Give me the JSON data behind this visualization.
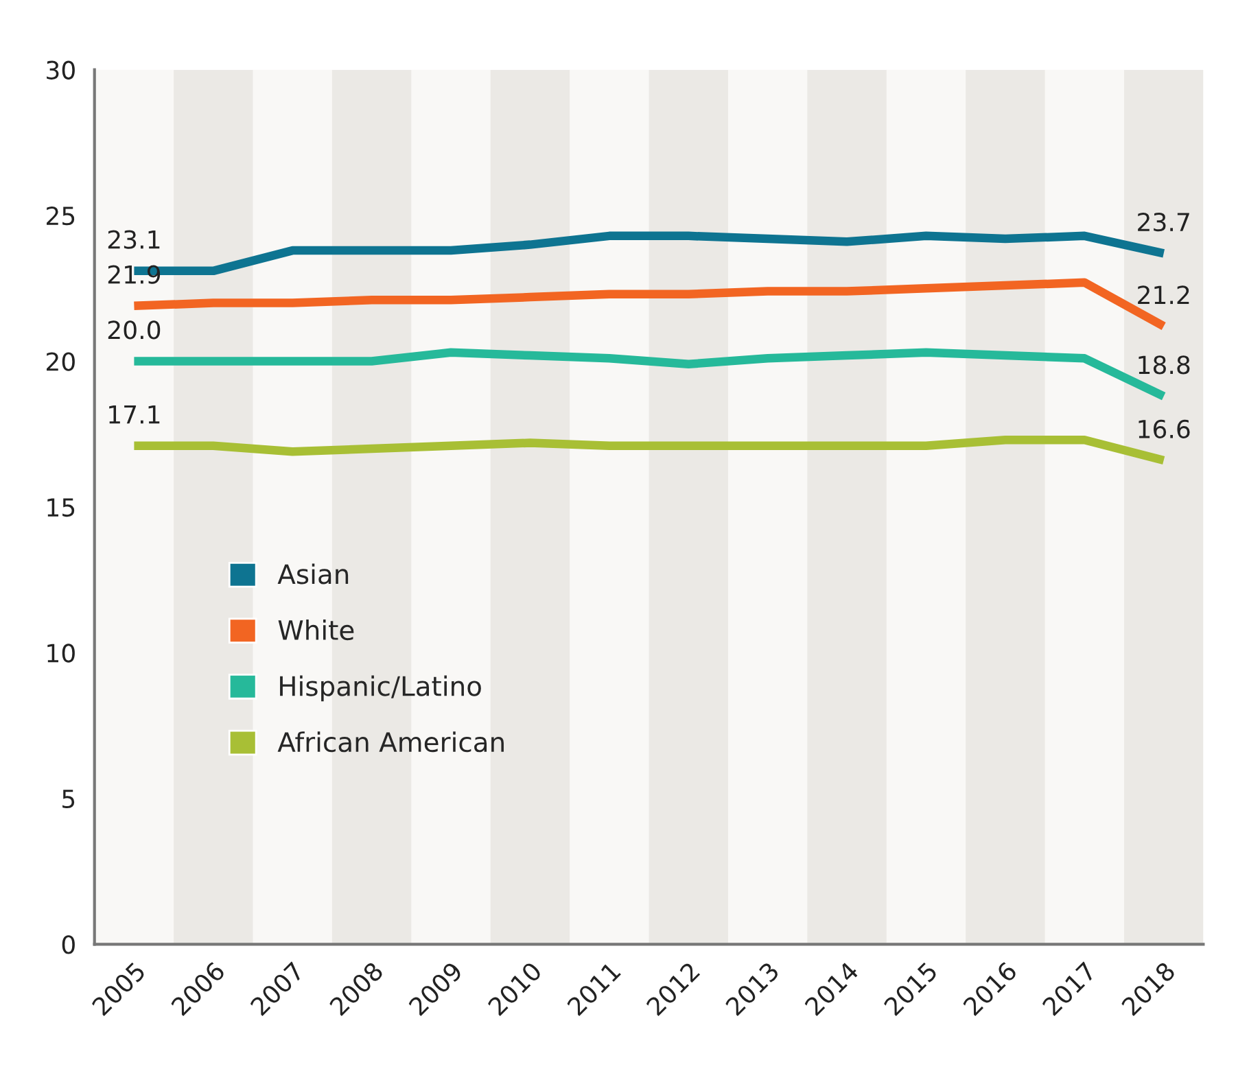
{
  "chart_data": {
    "type": "line",
    "categories": [
      "2005",
      "2006",
      "2007",
      "2008",
      "2009",
      "2010",
      "2011",
      "2012",
      "2013",
      "2014",
      "2015",
      "2016",
      "2017",
      "2018"
    ],
    "series": [
      {
        "name": "Asian",
        "color": "#0e7491",
        "values": [
          23.1,
          23.1,
          23.8,
          23.8,
          23.8,
          24.0,
          24.3,
          24.3,
          24.2,
          24.1,
          24.3,
          24.2,
          24.3,
          23.7
        ],
        "value_labels": [
          "23.1",
          null,
          null,
          null,
          null,
          null,
          null,
          null,
          null,
          null,
          null,
          null,
          null,
          "23.7"
        ]
      },
      {
        "name": "White",
        "color": "#f26522",
        "values": [
          21.9,
          22.0,
          22.0,
          22.1,
          22.1,
          22.2,
          22.3,
          22.3,
          22.4,
          22.4,
          22.5,
          22.6,
          22.7,
          21.2
        ],
        "value_labels": [
          "21.9",
          null,
          null,
          null,
          null,
          null,
          null,
          null,
          null,
          null,
          null,
          null,
          null,
          "21.2"
        ]
      },
      {
        "name": "Hispanic/Latino",
        "color": "#26b99a",
        "values": [
          20.0,
          20.0,
          20.0,
          20.0,
          20.3,
          20.2,
          20.1,
          19.9,
          20.1,
          20.2,
          20.3,
          20.2,
          20.1,
          18.8
        ],
        "value_labels": [
          "20.0",
          null,
          null,
          null,
          null,
          null,
          null,
          null,
          null,
          null,
          null,
          null,
          null,
          "18.8"
        ]
      },
      {
        "name": "African American",
        "color": "#a8bf35",
        "values": [
          17.1,
          17.1,
          16.9,
          17.0,
          17.1,
          17.2,
          17.1,
          17.1,
          17.1,
          17.1,
          17.1,
          17.3,
          17.3,
          16.6
        ],
        "value_labels": [
          "17.1",
          null,
          null,
          null,
          null,
          null,
          null,
          null,
          null,
          null,
          null,
          null,
          null,
          "16.6"
        ]
      }
    ],
    "ylim": [
      0,
      30
    ],
    "yticks": [
      0,
      5,
      10,
      15,
      20,
      25,
      30
    ],
    "grid": false,
    "legend": "center left",
    "marker": "none",
    "line_style": "solid"
  }
}
